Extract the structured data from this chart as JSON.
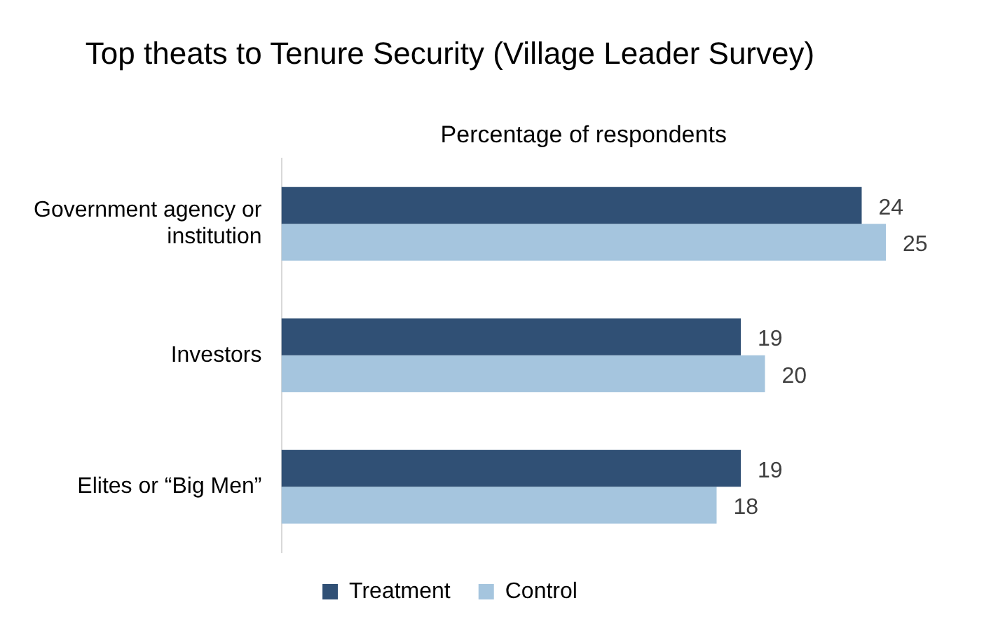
{
  "chart_data": {
    "type": "bar",
    "orientation": "horizontal",
    "title": "Top theats to Tenure Security (Village Leader Survey)",
    "xlabel": "Percentage of respondents",
    "categories": [
      "Government agency or institution",
      "Investors",
      "Elites or “Big Men”"
    ],
    "series": [
      {
        "name": "Treatment",
        "color": "#305075",
        "values": [
          24,
          19,
          19
        ]
      },
      {
        "name": "Control",
        "color": "#a5c5de",
        "values": [
          25,
          20,
          18
        ]
      }
    ],
    "tick_labels": "y",
    "data_labels": true,
    "legend": "bottom",
    "grid": false
  }
}
